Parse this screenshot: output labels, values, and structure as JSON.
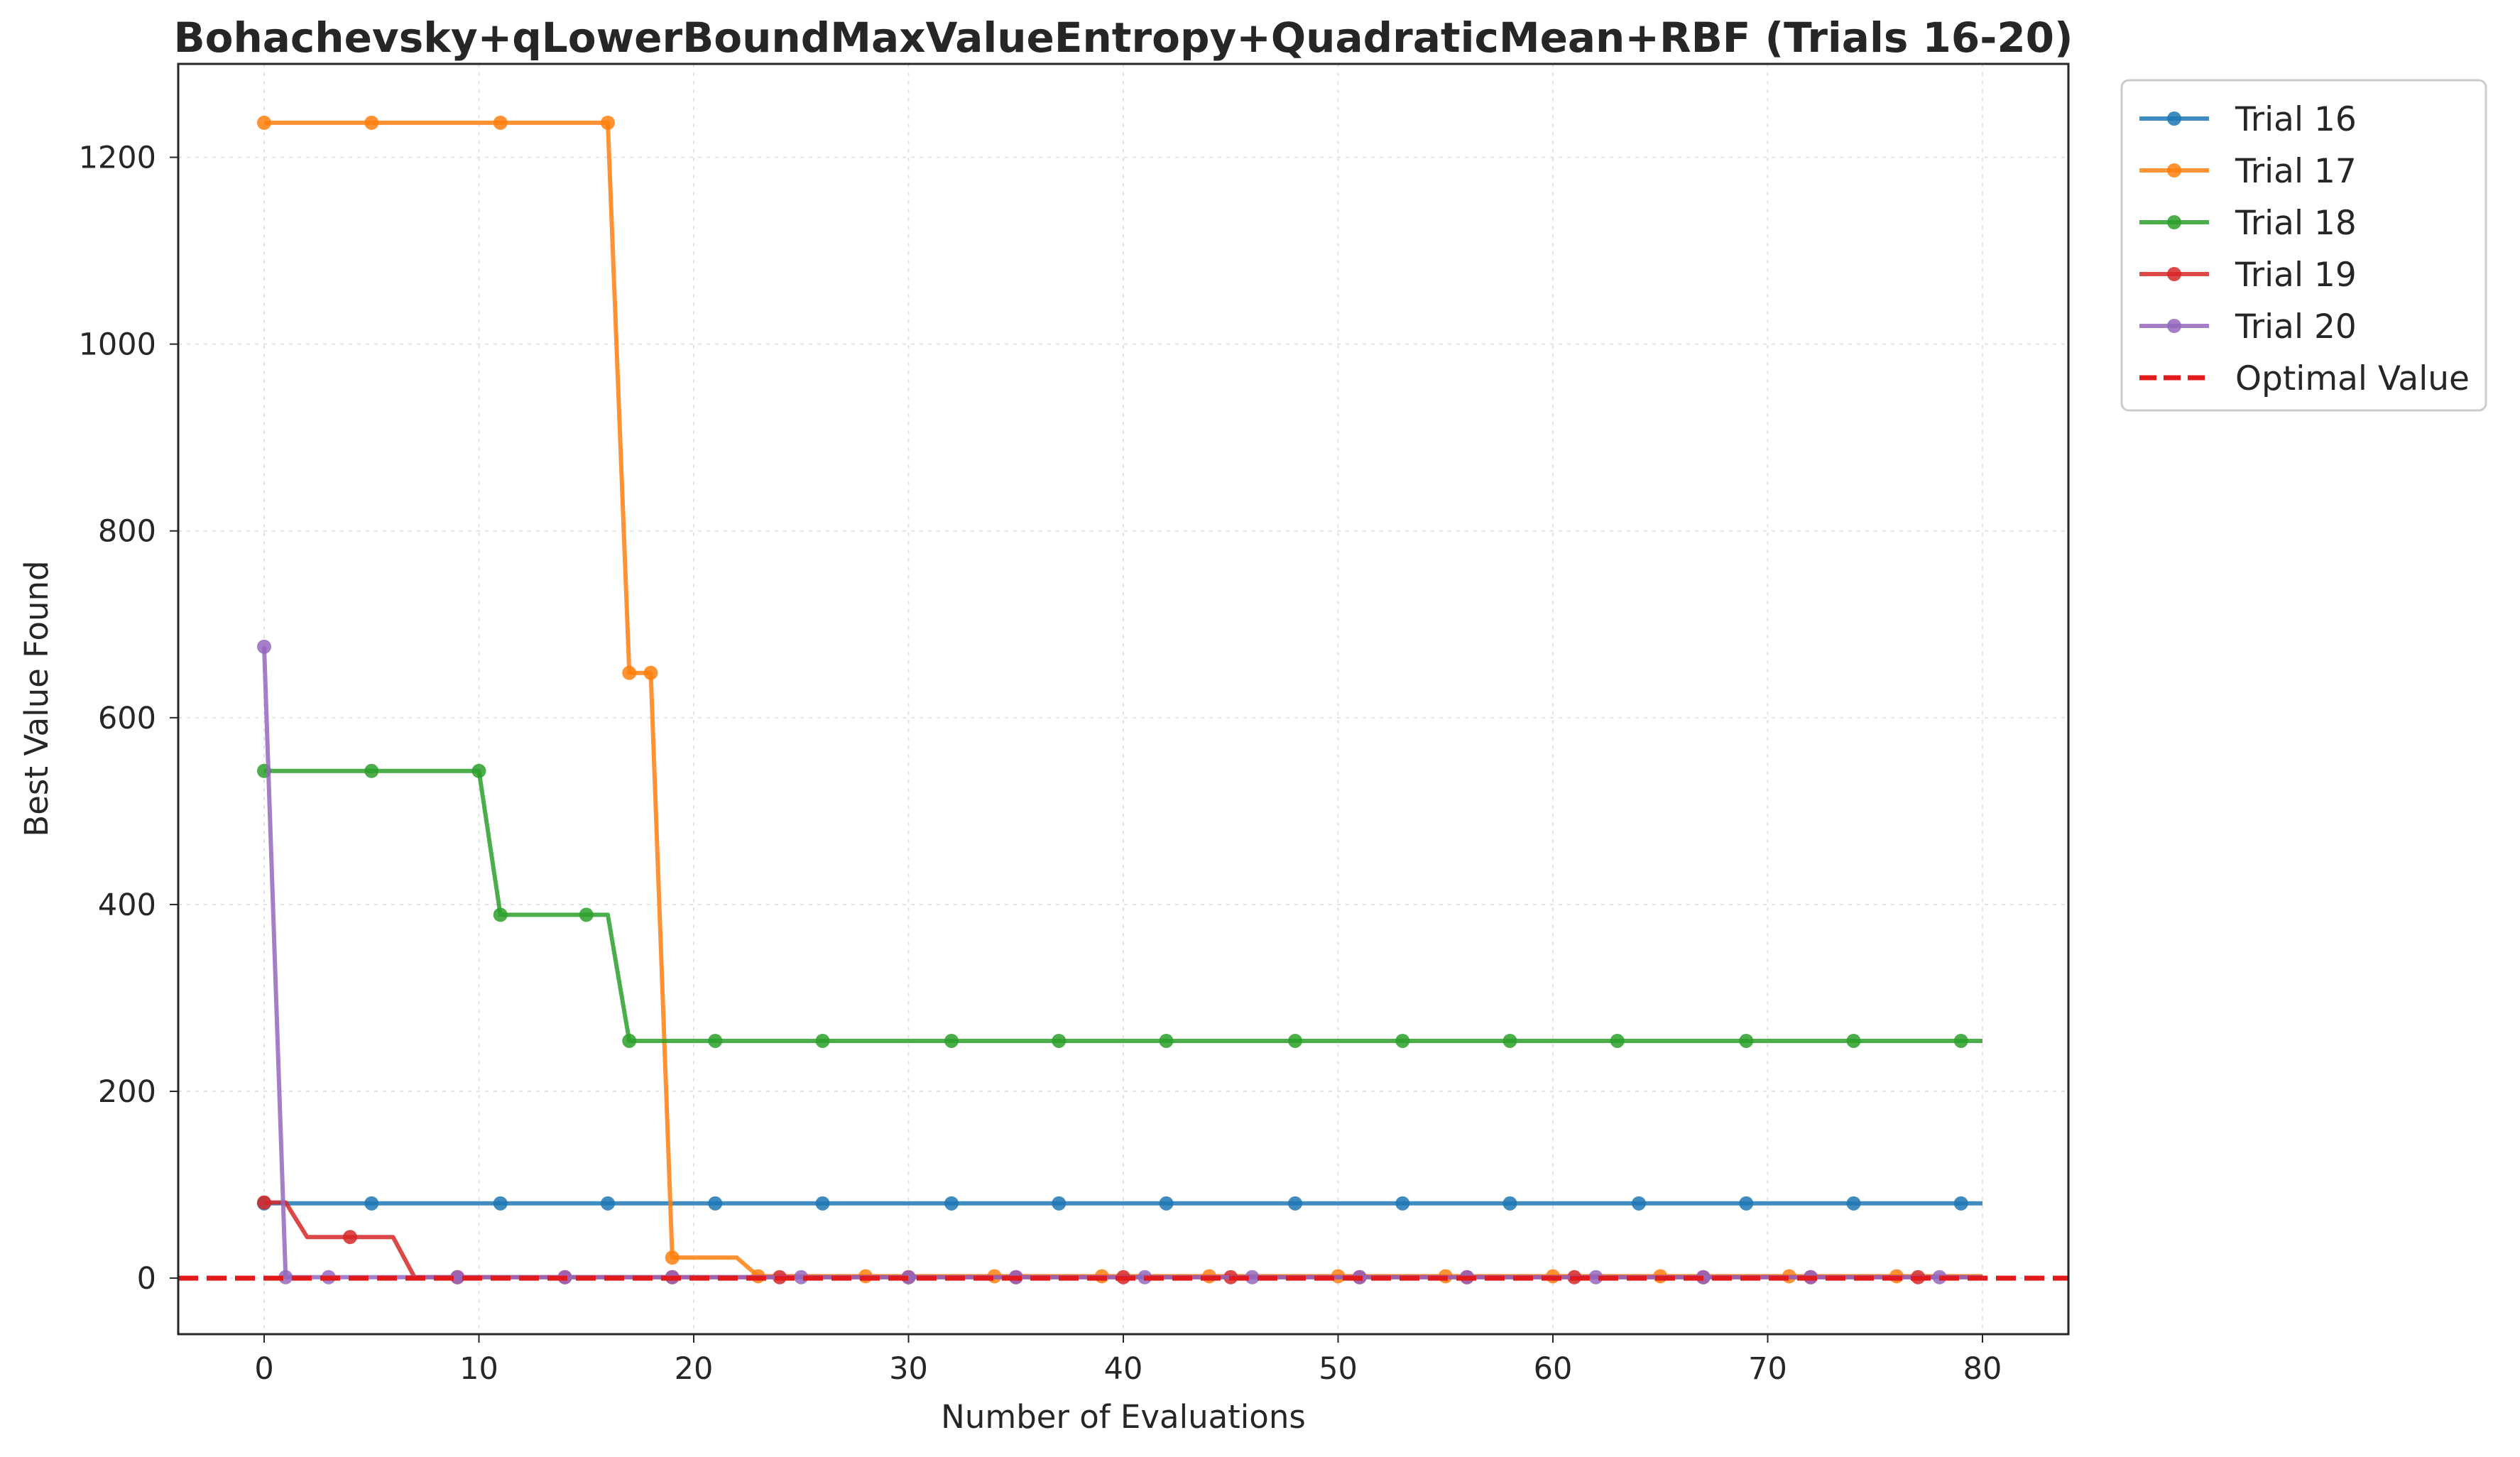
{
  "chart_data": {
    "type": "line",
    "title": "Bohachevsky+qLowerBoundMaxValueEntropy+QuadraticMean+RBF (Trials 16-20)",
    "xlabel": "Number of Evaluations",
    "ylabel": "Best Value Found",
    "xlim": [
      -4,
      84
    ],
    "ylim": [
      -60,
      1300
    ],
    "xticks": [
      0,
      10,
      20,
      30,
      40,
      50,
      60,
      70,
      80
    ],
    "yticks": [
      0,
      200,
      400,
      600,
      800,
      1000,
      1200
    ],
    "grid": true,
    "legend_position": "outside-right-top",
    "series": [
      {
        "name": "Trial 16",
        "color": "#1f77b4",
        "step_x": [
          0,
          80
        ],
        "step_y": [
          80,
          80
        ],
        "marker_x": [
          0,
          5,
          11,
          16,
          21,
          26,
          32,
          37,
          42,
          48,
          53,
          58,
          64,
          69,
          74,
          79
        ],
        "marker_y": [
          80,
          80,
          80,
          80,
          80,
          80,
          80,
          80,
          80,
          80,
          80,
          80,
          80,
          80,
          80,
          80
        ]
      },
      {
        "name": "Trial 17",
        "color": "#ff7f0e",
        "step_x": [
          0,
          16,
          17,
          18,
          19,
          22,
          23,
          80
        ],
        "step_y": [
          1237,
          1237,
          648,
          648,
          22,
          22,
          2,
          2
        ],
        "marker_x": [
          0,
          5,
          11,
          16,
          17,
          18,
          19,
          23,
          28,
          34,
          39,
          44,
          50,
          55,
          60,
          65,
          71,
          76
        ],
        "marker_y": [
          1237,
          1237,
          1237,
          1237,
          648,
          648,
          22,
          2,
          2,
          2,
          2,
          2,
          2,
          2,
          2,
          2,
          2,
          2
        ]
      },
      {
        "name": "Trial 18",
        "color": "#2ca02c",
        "step_x": [
          0,
          10,
          11,
          16,
          17,
          80
        ],
        "step_y": [
          543,
          543,
          389,
          389,
          254,
          254
        ],
        "marker_x": [
          0,
          5,
          10,
          11,
          15,
          17,
          21,
          26,
          32,
          37,
          42,
          48,
          53,
          58,
          63,
          69,
          74,
          79
        ],
        "marker_y": [
          543,
          543,
          543,
          389,
          389,
          254,
          254,
          254,
          254,
          254,
          254,
          254,
          254,
          254,
          254,
          254,
          254,
          254
        ]
      },
      {
        "name": "Trial 19",
        "color": "#d62728",
        "step_x": [
          0,
          1,
          2,
          6,
          7,
          80
        ],
        "step_y": [
          81,
          81,
          44,
          44,
          1,
          1
        ],
        "marker_x": [
          0,
          4,
          9,
          14,
          19,
          24,
          30,
          35,
          40,
          45,
          51,
          56,
          61,
          67,
          72,
          77
        ],
        "marker_y": [
          81,
          44,
          1,
          1,
          1,
          1,
          1,
          1,
          1,
          1,
          1,
          1,
          1,
          1,
          1,
          1
        ]
      },
      {
        "name": "Trial 20",
        "color": "#9467bd",
        "step_x": [
          0,
          1,
          80
        ],
        "step_y": [
          676,
          1,
          1
        ],
        "marker_x": [
          0,
          1,
          3,
          9,
          14,
          19,
          25,
          30,
          35,
          41,
          46,
          51,
          56,
          62,
          67,
          72,
          78
        ],
        "marker_y": [
          676,
          1,
          1,
          1,
          1,
          1,
          1,
          1,
          1,
          1,
          1,
          1,
          1,
          1,
          1,
          1,
          1
        ]
      }
    ],
    "reference_lines": [
      {
        "name": "Optimal Value",
        "y": 0,
        "color": "#e31a1c",
        "style": "dashed"
      }
    ]
  }
}
